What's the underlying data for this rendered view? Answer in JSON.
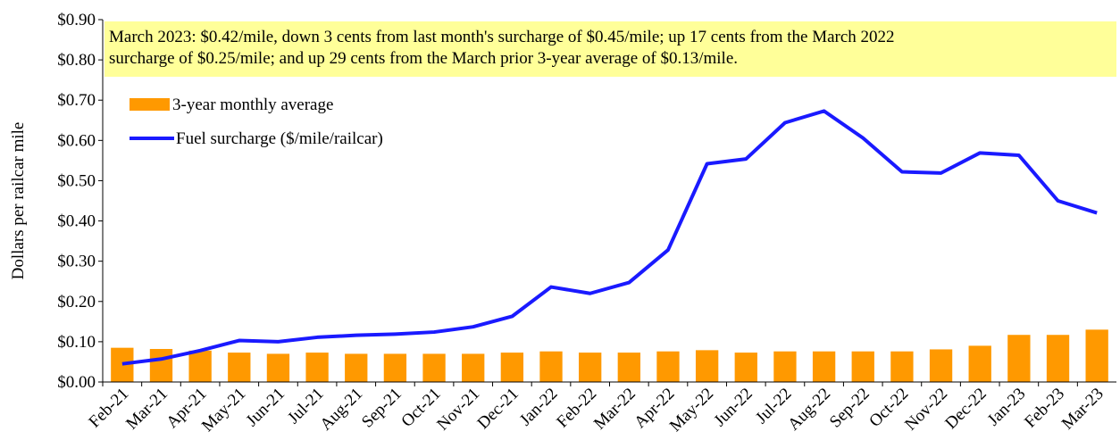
{
  "chart_data": {
    "type": "bar+line",
    "y_axis_label": "Dollars per railcar mile",
    "annotation": [
      "March 2023: $0.42/mile, down 3 cents from last month's surcharge of $0.45/mile; up 17 cents from the March 2022",
      "surcharge of $0.25/mile; and up 29 cents from the March prior 3-year average of  $0.13/mile."
    ],
    "categories": [
      "Feb-21",
      "Mar-21",
      "Apr-21",
      "May-21",
      "Jun-21",
      "Jul-21",
      "Aug-21",
      "Sep-21",
      "Oct-21",
      "Nov-21",
      "Dec-21",
      "Jan-22",
      "Feb-22",
      "Mar-22",
      "Apr-22",
      "May-22",
      "Jun-22",
      "Jul-22",
      "Aug-22",
      "Sep-22",
      "Oct-22",
      "Nov-22",
      "Dec-22",
      "Jan-23",
      "Feb-23",
      "Mar-23"
    ],
    "series": [
      {
        "name": "3-year monthly average",
        "type": "bar",
        "color": "#ff9900",
        "values": [
          0.085,
          0.082,
          0.078,
          0.073,
          0.07,
          0.073,
          0.07,
          0.07,
          0.07,
          0.07,
          0.073,
          0.076,
          0.073,
          0.073,
          0.076,
          0.079,
          0.073,
          0.076,
          0.076,
          0.076,
          0.076,
          0.081,
          0.09,
          0.117,
          0.117,
          0.13
        ]
      },
      {
        "name": "Fuel surcharge ($/mile/railcar)",
        "type": "line",
        "color": "#1a1aff",
        "values": [
          0.045,
          0.057,
          0.078,
          0.103,
          0.1,
          0.111,
          0.116,
          0.119,
          0.124,
          0.137,
          0.163,
          0.236,
          0.22,
          0.247,
          0.328,
          0.542,
          0.554,
          0.644,
          0.673,
          0.606,
          0.522,
          0.519,
          0.569,
          0.563,
          0.45,
          0.42
        ]
      }
    ],
    "ylim": [
      0,
      0.9
    ],
    "yticks": [
      {
        "value": 0,
        "label": "$0.00"
      },
      {
        "value": 0.1,
        "label": "$0.10"
      },
      {
        "value": 0.2,
        "label": "$0.20"
      },
      {
        "value": 0.3,
        "label": "$0.30"
      },
      {
        "value": 0.4,
        "label": "$0.40"
      },
      {
        "value": 0.5,
        "label": "$0.50"
      },
      {
        "value": 0.6,
        "label": "$0.60"
      },
      {
        "value": 0.7,
        "label": "$0.70"
      },
      {
        "value": 0.8,
        "label": "$0.80"
      },
      {
        "value": 0.9,
        "label": "$0.90"
      }
    ]
  }
}
